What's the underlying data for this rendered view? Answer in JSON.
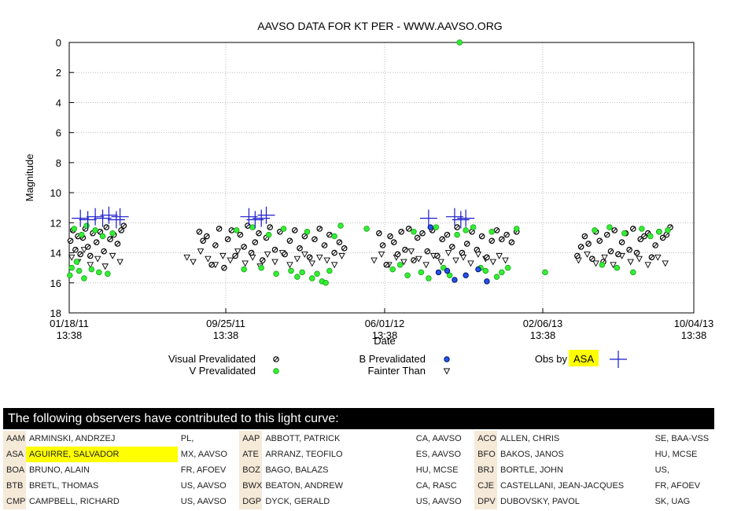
{
  "chart_data": {
    "type": "scatter",
    "title": "AAVSO DATA FOR KT PER - WWW.AAVSO.ORG",
    "xlabel": "Date",
    "ylabel": "Magnitude",
    "y_inverted": true,
    "ylim": [
      0,
      18
    ],
    "yticks": [
      0,
      2,
      4,
      6,
      8,
      10,
      12,
      14,
      16,
      18
    ],
    "xticks": [
      {
        "date": "01/18/11",
        "time": "13:38"
      },
      {
        "date": "09/25/11",
        "time": "13:38"
      },
      {
        "date": "06/01/12",
        "time": "13:38"
      },
      {
        "date": "02/06/13",
        "time": "13:38"
      },
      {
        "date": "10/04/13",
        "time": "13:38"
      }
    ],
    "xlim_days": [
      0,
      1008
    ],
    "grid": true,
    "legend": [
      {
        "label": "Visual Prevalidated",
        "marker": "circle-hatched",
        "color": "#000000"
      },
      {
        "label": "V Prevalidated",
        "marker": "circle",
        "color": "#22dd22"
      },
      {
        "label": "B Prevalidated",
        "marker": "circle",
        "color": "#1133cc"
      },
      {
        "label": "Fainter Than",
        "marker": "triangle-down",
        "color": "#000000"
      },
      {
        "label": "Obs by",
        "highlight": "ASA",
        "marker": "plus",
        "color": "#0000cc"
      }
    ],
    "series": [
      {
        "name": "Visual Prevalidated",
        "points": [
          [
            2,
            13.2
          ],
          [
            6,
            12.5
          ],
          [
            10,
            13.8
          ],
          [
            14,
            12.9
          ],
          [
            18,
            14.1
          ],
          [
            22,
            13.0
          ],
          [
            26,
            12.4
          ],
          [
            30,
            13.6
          ],
          [
            34,
            14.2
          ],
          [
            38,
            12.7
          ],
          [
            44,
            13.3
          ],
          [
            50,
            12.6
          ],
          [
            56,
            13.9
          ],
          [
            60,
            12.3
          ],
          [
            66,
            13.1
          ],
          [
            72,
            12.8
          ],
          [
            78,
            13.4
          ],
          [
            84,
            12.5
          ],
          [
            88,
            12.2
          ],
          [
            210,
            12.6
          ],
          [
            216,
            13.2
          ],
          [
            222,
            12.9
          ],
          [
            230,
            14.8
          ],
          [
            236,
            13.5
          ],
          [
            242,
            12.4
          ],
          [
            250,
            15.0
          ],
          [
            256,
            13.1
          ],
          [
            262,
            12.5
          ],
          [
            268,
            14.2
          ],
          [
            276,
            12.8
          ],
          [
            282,
            13.6
          ],
          [
            288,
            12.2
          ],
          [
            294,
            14.0
          ],
          [
            300,
            13.3
          ],
          [
            306,
            12.7
          ],
          [
            312,
            14.5
          ],
          [
            318,
            13.0
          ],
          [
            324,
            12.3
          ],
          [
            332,
            13.8
          ],
          [
            340,
            12.6
          ],
          [
            348,
            14.1
          ],
          [
            356,
            13.2
          ],
          [
            364,
            12.5
          ],
          [
            372,
            13.7
          ],
          [
            380,
            12.9
          ],
          [
            388,
            14.3
          ],
          [
            396,
            13.1
          ],
          [
            404,
            12.4
          ],
          [
            412,
            13.5
          ],
          [
            420,
            12.8
          ],
          [
            428,
            14.0
          ],
          [
            436,
            13.3
          ],
          [
            444,
            13.7
          ],
          [
            500,
            12.7
          ],
          [
            506,
            13.5
          ],
          [
            512,
            14.8
          ],
          [
            518,
            12.9
          ],
          [
            524,
            13.3
          ],
          [
            530,
            14.1
          ],
          [
            536,
            12.6
          ],
          [
            542,
            13.8
          ],
          [
            548,
            12.4
          ],
          [
            556,
            14.5
          ],
          [
            562,
            13.0
          ],
          [
            570,
            12.7
          ],
          [
            578,
            13.9
          ],
          [
            586,
            12.5
          ],
          [
            594,
            14.2
          ],
          [
            602,
            13.1
          ],
          [
            610,
            12.8
          ],
          [
            618,
            13.6
          ],
          [
            626,
            12.3
          ],
          [
            634,
            14.0
          ],
          [
            642,
            13.4
          ],
          [
            650,
            12.6
          ],
          [
            658,
            13.8
          ],
          [
            666,
            12.9
          ],
          [
            674,
            14.3
          ],
          [
            682,
            13.2
          ],
          [
            690,
            12.5
          ],
          [
            698,
            13.1
          ],
          [
            706,
            12.8
          ],
          [
            714,
            13.3
          ],
          [
            722,
            12.6
          ],
          [
            820,
            14.2
          ],
          [
            826,
            13.6
          ],
          [
            832,
            12.9
          ],
          [
            838,
            13.4
          ],
          [
            844,
            14.4
          ],
          [
            850,
            12.6
          ],
          [
            856,
            13.2
          ],
          [
            862,
            14.6
          ],
          [
            868,
            12.8
          ],
          [
            874,
            13.9
          ],
          [
            880,
            12.5
          ],
          [
            886,
            14.1
          ],
          [
            892,
            13.3
          ],
          [
            898,
            12.7
          ],
          [
            904,
            13.8
          ],
          [
            910,
            12.4
          ],
          [
            916,
            14.0
          ],
          [
            922,
            13.1
          ],
          [
            928,
            12.9
          ],
          [
            934,
            12.7
          ],
          [
            940,
            14.3
          ],
          [
            946,
            13.5
          ],
          [
            952,
            12.6
          ],
          [
            958,
            13.0
          ],
          [
            964,
            12.8
          ],
          [
            970,
            12.3
          ]
        ]
      },
      {
        "name": "V Prevalidated",
        "points": [
          [
            1,
            15.5
          ],
          [
            4,
            15.0
          ],
          [
            8,
            12.4
          ],
          [
            12,
            14.6
          ],
          [
            16,
            15.2
          ],
          [
            20,
            12.8
          ],
          [
            24,
            15.7
          ],
          [
            28,
            12.2
          ],
          [
            36,
            15.1
          ],
          [
            42,
            12.5
          ],
          [
            48,
            15.3
          ],
          [
            54,
            12.9
          ],
          [
            62,
            15.4
          ],
          [
            70,
            12.7
          ],
          [
            270,
            12.5
          ],
          [
            282,
            15.1
          ],
          [
            296,
            12.3
          ],
          [
            310,
            15.0
          ],
          [
            322,
            12.8
          ],
          [
            334,
            15.4
          ],
          [
            346,
            12.4
          ],
          [
            358,
            15.2
          ],
          [
            368,
            15.6
          ],
          [
            376,
            15.3
          ],
          [
            384,
            12.6
          ],
          [
            392,
            15.7
          ],
          [
            400,
            15.4
          ],
          [
            408,
            15.9
          ],
          [
            414,
            16.0
          ],
          [
            420,
            15.2
          ],
          [
            428,
            12.9
          ],
          [
            438,
            12.2
          ],
          [
            480,
            12.4
          ],
          [
            522,
            15.1
          ],
          [
            534,
            14.8
          ],
          [
            546,
            15.5
          ],
          [
            556,
            12.6
          ],
          [
            568,
            15.3
          ],
          [
            580,
            15.7
          ],
          [
            592,
            12.3
          ],
          [
            604,
            15.0
          ],
          [
            614,
            15.5
          ],
          [
            626,
            12.8
          ],
          [
            640,
            12.5
          ],
          [
            652,
            12.3
          ],
          [
            664,
            15.0
          ],
          [
            672,
            15.2
          ],
          [
            682,
            12.6
          ],
          [
            690,
            15.6
          ],
          [
            698,
            15.3
          ],
          [
            708,
            15.0
          ],
          [
            722,
            12.4
          ],
          [
            768,
            15.3
          ],
          [
            848,
            12.5
          ],
          [
            860,
            14.8
          ],
          [
            872,
            12.3
          ],
          [
            884,
            15.0
          ],
          [
            896,
            12.7
          ],
          [
            910,
            15.3
          ],
          [
            924,
            12.4
          ],
          [
            938,
            12.9
          ],
          [
            952,
            12.6
          ],
          [
            966,
            12.5
          ],
          [
            630,
            0.0
          ]
        ]
      },
      {
        "name": "B Prevalidated",
        "points": [
          [
            583,
            12.3
          ],
          [
            596,
            15.3
          ],
          [
            610,
            15.2
          ],
          [
            622,
            15.8
          ],
          [
            640,
            15.5
          ],
          [
            660,
            15.1
          ],
          [
            674,
            15.9
          ]
        ]
      },
      {
        "name": "Fainter Than",
        "points": [
          [
            4,
            14.3
          ],
          [
            14,
            14.6
          ],
          [
            24,
            13.8
          ],
          [
            34,
            14.8
          ],
          [
            46,
            14.4
          ],
          [
            58,
            14.9
          ],
          [
            70,
            14.2
          ],
          [
            82,
            14.6
          ],
          [
            190,
            14.3
          ],
          [
            200,
            14.6
          ],
          [
            212,
            13.9
          ],
          [
            224,
            14.4
          ],
          [
            236,
            14.8
          ],
          [
            248,
            14.2
          ],
          [
            260,
            14.5
          ],
          [
            272,
            13.9
          ],
          [
            284,
            14.7
          ],
          [
            296,
            14.3
          ],
          [
            308,
            14.9
          ],
          [
            320,
            14.1
          ],
          [
            332,
            14.6
          ],
          [
            344,
            14.0
          ],
          [
            356,
            14.8
          ],
          [
            368,
            14.4
          ],
          [
            380,
            14.1
          ],
          [
            392,
            14.7
          ],
          [
            404,
            14.3
          ],
          [
            416,
            14.5
          ],
          [
            428,
            14.8
          ],
          [
            440,
            14.2
          ],
          [
            492,
            14.5
          ],
          [
            504,
            14.1
          ],
          [
            516,
            14.8
          ],
          [
            528,
            14.3
          ],
          [
            540,
            14.6
          ],
          [
            552,
            13.9
          ],
          [
            564,
            14.4
          ],
          [
            576,
            14.8
          ],
          [
            588,
            14.2
          ],
          [
            600,
            14.6
          ],
          [
            612,
            14.0
          ],
          [
            624,
            14.5
          ],
          [
            636,
            14.3
          ],
          [
            648,
            14.7
          ],
          [
            660,
            14.1
          ],
          [
            672,
            14.4
          ],
          [
            684,
            14.6
          ],
          [
            694,
            14.2
          ],
          [
            704,
            14.5
          ],
          [
            822,
            14.5
          ],
          [
            836,
            14.1
          ],
          [
            850,
            14.7
          ],
          [
            864,
            14.3
          ],
          [
            878,
            14.8
          ],
          [
            892,
            14.2
          ],
          [
            906,
            14.6
          ],
          [
            920,
            14.4
          ],
          [
            934,
            14.8
          ],
          [
            950,
            14.3
          ],
          [
            962,
            14.7
          ]
        ]
      },
      {
        "name": "Obs by ASA",
        "points": [
          [
            18,
            11.7
          ],
          [
            30,
            11.8
          ],
          [
            42,
            11.6
          ],
          [
            54,
            11.7
          ],
          [
            64,
            11.5
          ],
          [
            76,
            11.8
          ],
          [
            82,
            11.6
          ],
          [
            290,
            11.6
          ],
          [
            300,
            11.8
          ],
          [
            310,
            11.7
          ],
          [
            318,
            11.5
          ],
          [
            580,
            11.7
          ],
          [
            622,
            11.6
          ],
          [
            632,
            11.8
          ],
          [
            640,
            11.7
          ]
        ]
      }
    ]
  },
  "observers": {
    "header": "The following observers have contributed to this light curve:",
    "rows": [
      [
        {
          "code": "AAM",
          "name": "ARMINSKI, ANDRZEJ",
          "loc": "PL,"
        },
        {
          "code": "AAP",
          "name": "ABBOTT, PATRICK",
          "loc": "CA, AAVSO"
        },
        {
          "code": "ACO",
          "name": "ALLEN, CHRIS",
          "loc": "SE, BAA-VSS"
        }
      ],
      [
        {
          "code": "ASA",
          "name": "AGUIRRE, SALVADOR",
          "loc": "MX, AAVSO",
          "highlight": true
        },
        {
          "code": "ATE",
          "name": "ARRANZ, TEOFILO",
          "loc": "ES, AAVSO"
        },
        {
          "code": "BFO",
          "name": "BAKOS, JANOS",
          "loc": "HU, MCSE"
        }
      ],
      [
        {
          "code": "BOA",
          "name": "BRUNO, ALAIN",
          "loc": "FR, AFOEV"
        },
        {
          "code": "BOZ",
          "name": "BAGO, BALAZS",
          "loc": "HU, MCSE"
        },
        {
          "code": "BRJ",
          "name": "BORTLE, JOHN",
          "loc": "US,"
        }
      ],
      [
        {
          "code": "BTB",
          "name": "BRETL, THOMAS",
          "loc": "US, AAVSO"
        },
        {
          "code": "BWX",
          "name": "BEATON, ANDREW",
          "loc": "CA, RASC"
        },
        {
          "code": "CJE",
          "name": "CASTELLANI, JEAN-JACQUES",
          "loc": "FR, AFOEV"
        }
      ],
      [
        {
          "code": "CMP",
          "name": "CAMPBELL, RICHARD",
          "loc": "US, AAVSO"
        },
        {
          "code": "DGP",
          "name": "DYCK, GERALD",
          "loc": "US, AAVSO"
        },
        {
          "code": "DPV",
          "name": "DUBOVSKY, PAVOL",
          "loc": "SK, UAG"
        }
      ]
    ]
  }
}
